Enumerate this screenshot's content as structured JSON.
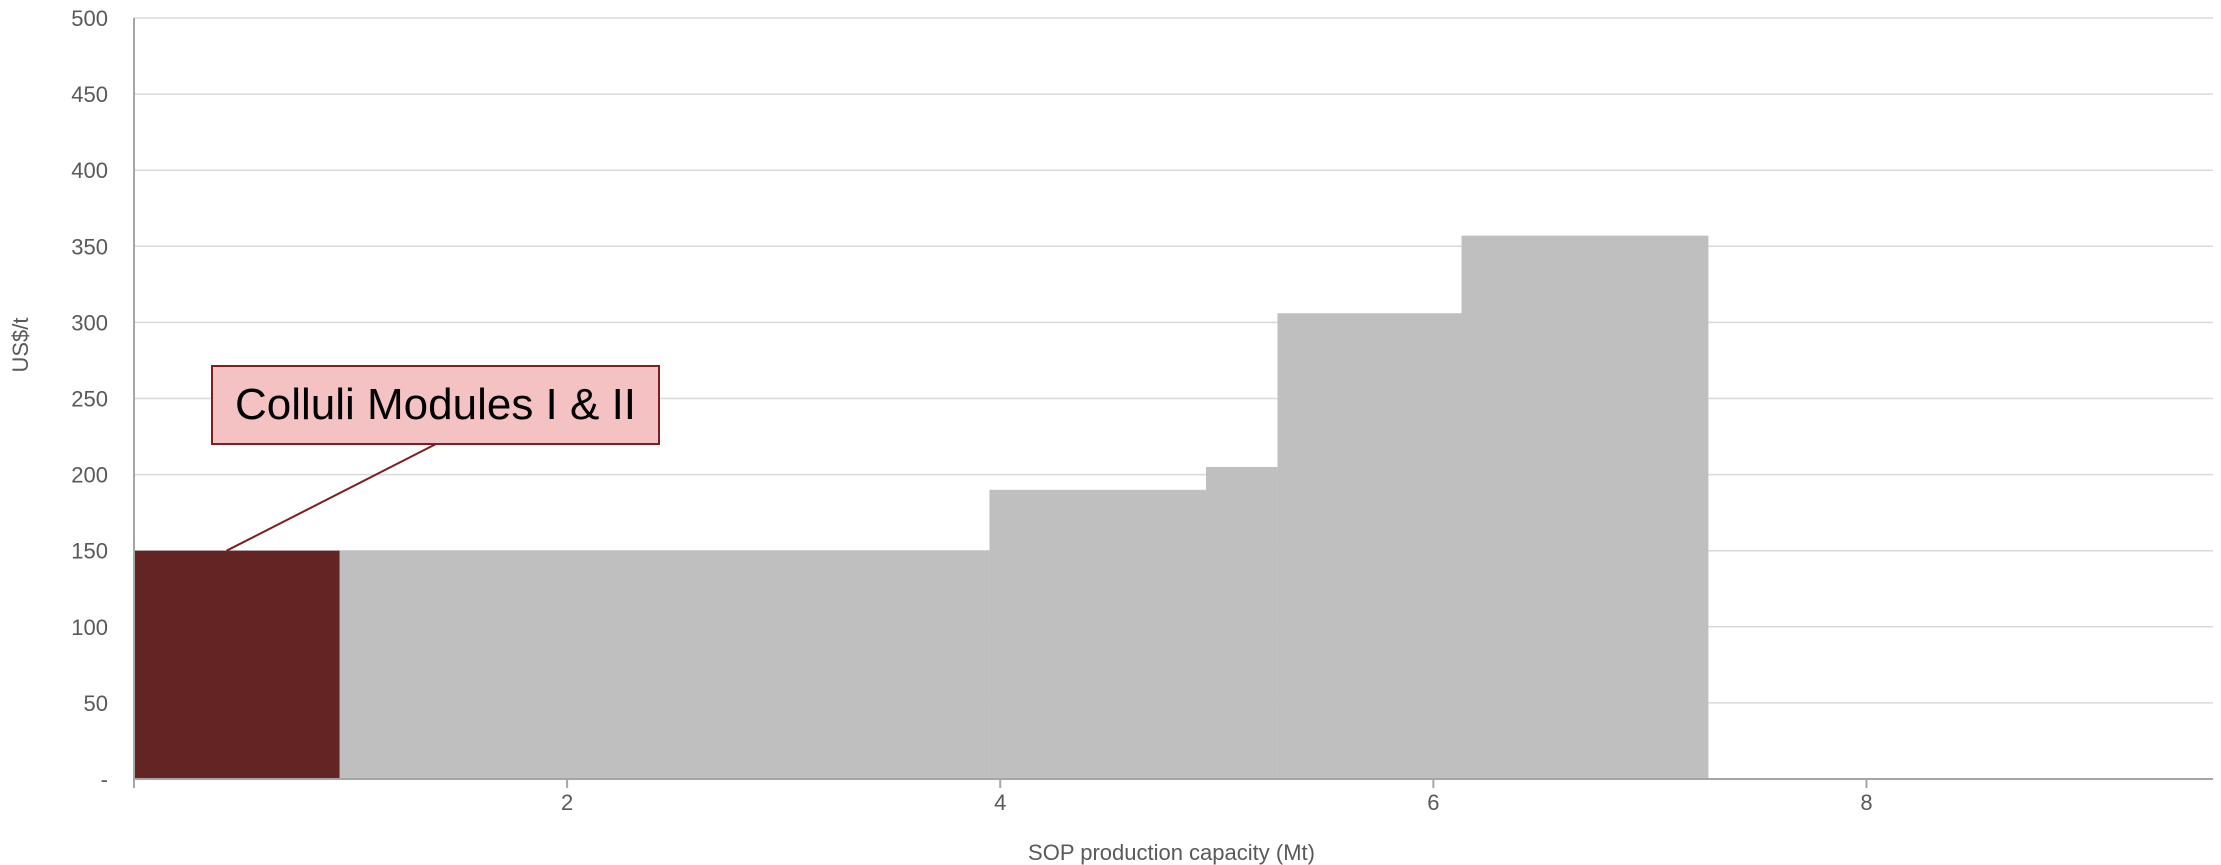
{
  "chart_data": {
    "type": "bar",
    "subtype": "cost-curve",
    "xlabel": "SOP production capacity (Mt)",
    "ylabel": "US$/t",
    "xlim": [
      0,
      9.6
    ],
    "ylim": [
      0,
      500
    ],
    "x_ticks": [
      2,
      4,
      6,
      8
    ],
    "x_tick_labels": [
      "2",
      "4",
      "6",
      "8"
    ],
    "y_ticks": [
      0,
      50,
      100,
      150,
      200,
      250,
      300,
      350,
      400,
      450,
      500
    ],
    "y_tick_labels": [
      "-",
      "50",
      "100",
      "150",
      "200",
      "250",
      "300",
      "350",
      "400",
      "450",
      "500"
    ],
    "grid": true,
    "colors": {
      "highlight": "#632523",
      "others": "#bfbfbf",
      "grid": "#d9d9d9",
      "axis": "#a6a6a6",
      "callout_fill": "#f4c2c2",
      "callout_border": "#7b1f1f"
    },
    "bars": [
      {
        "x0": 0.0,
        "x1": 0.95,
        "value": 150,
        "highlight": true
      },
      {
        "x0": 0.95,
        "x1": 3.95,
        "value": 150,
        "highlight": false
      },
      {
        "x0": 3.95,
        "x1": 4.95,
        "value": 190,
        "highlight": false
      },
      {
        "x0": 4.95,
        "x1": 5.28,
        "value": 205,
        "highlight": false
      },
      {
        "x0": 5.28,
        "x1": 6.13,
        "value": 306,
        "highlight": false
      },
      {
        "x0": 6.13,
        "x1": 7.27,
        "value": 357,
        "highlight": false
      }
    ],
    "annotation": {
      "text": "Colluli Modules I & II",
      "target_bar": 0
    }
  }
}
